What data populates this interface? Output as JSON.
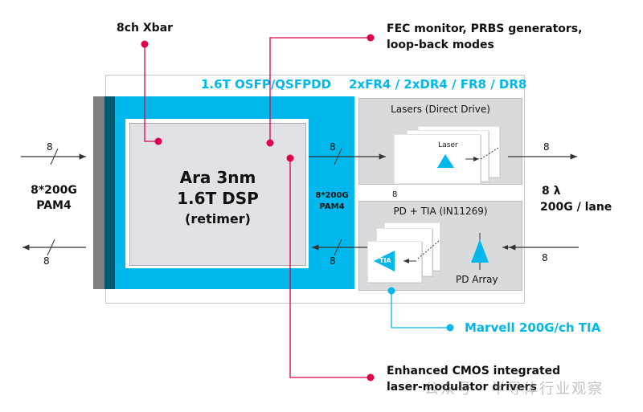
{
  "colors": {
    "cyan": "#00b8ec",
    "magenta": "#e0004d",
    "dark_teal": "#005a72",
    "gray_strip": "#7f7f7f",
    "panel_gray": "#d9dadc",
    "dsp_gray": "#e1e2e5"
  },
  "callouts": {
    "xbar": "8ch Xbar",
    "fec_line1": "FEC monitor, PRBS generators,",
    "fec_line2": "loop-back modes",
    "cmos_line1": "Enhanced CMOS integrated",
    "cmos_line2": "laser-modulator drivers",
    "tia": "Marvell 200G/ch TIA"
  },
  "module": {
    "form_factor": "1.6T OSFP/QSFPDD",
    "optics": "2xFR4 / 2xDR4 / FR8 / DR8"
  },
  "dsp": {
    "line1": "Ara 3nm",
    "line2": "1.6T DSP",
    "line3": "(retimer)"
  },
  "host": {
    "line1": "8*200G",
    "line2": "PAM4",
    "lanes_in": "8",
    "lanes_out": "8"
  },
  "internal": {
    "line1": "8*200G",
    "line2": "PAM4",
    "lanes_tx": "8",
    "lanes_rx": "8",
    "lanes_mid": "8"
  },
  "lasers": {
    "title": "Lasers (Direct Drive)",
    "card_label": "Laser"
  },
  "pd": {
    "title": "PD + TIA (IN11269)",
    "tia_label": "TIA",
    "array_label": "PD Array"
  },
  "line": {
    "lanes_tx": "8",
    "lanes_rx": "8",
    "line1": "8 λ",
    "line2": "200G / lane"
  },
  "watermark": "公众号 · 半导体行业观察"
}
